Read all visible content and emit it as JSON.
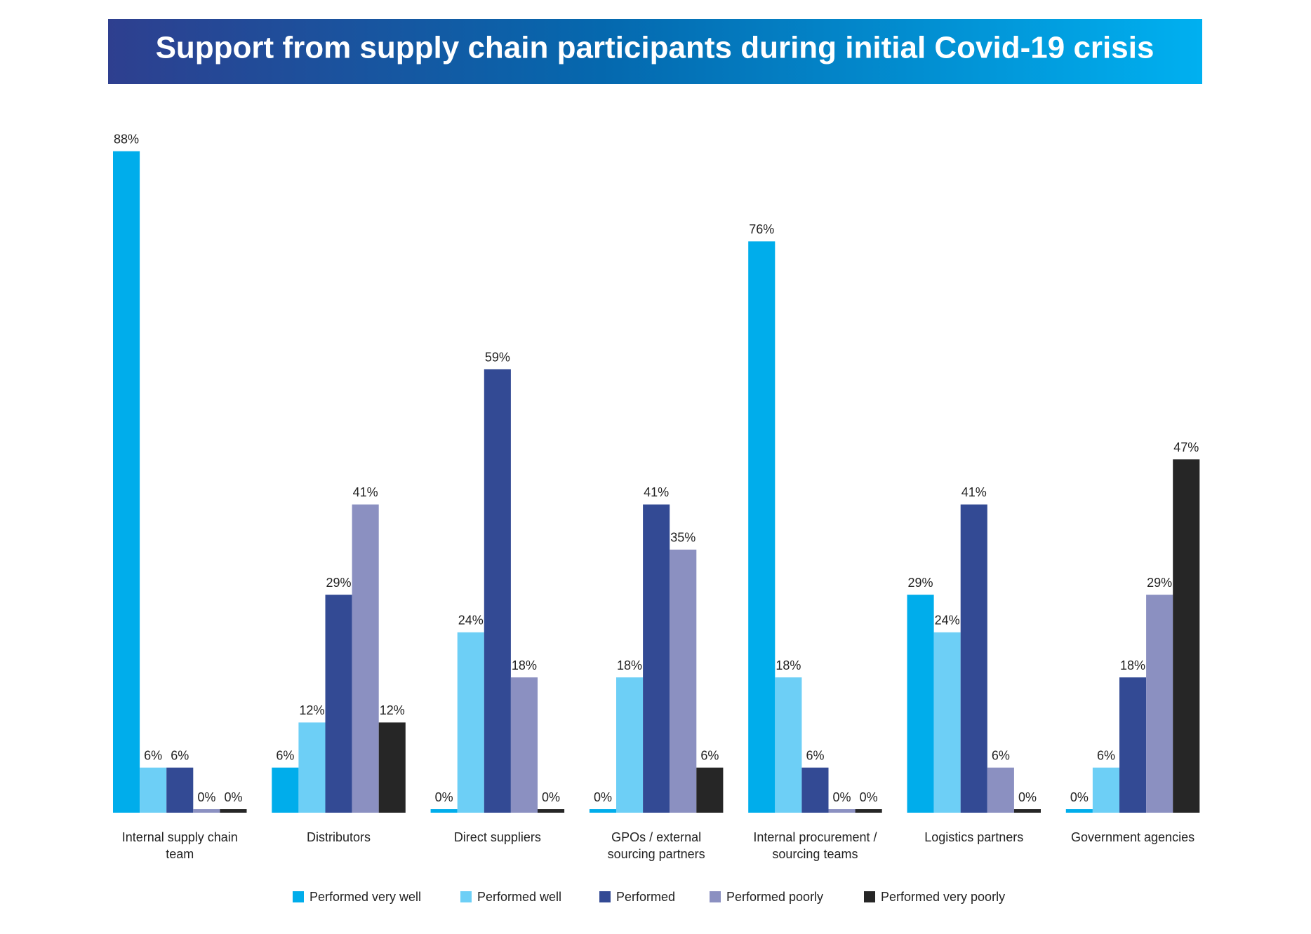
{
  "chart_data": {
    "type": "bar",
    "title": "Support from supply chain participants during initial Covid-19 crisis",
    "categories": [
      "Internal supply chain team",
      "Distributors",
      "Direct suppliers",
      "GPOs / external sourcing partners",
      "Internal procurement / sourcing teams",
      "Logistics partners",
      "Government agencies"
    ],
    "series": [
      {
        "name": "Performed very well",
        "color": "#00adeb",
        "values": [
          88,
          6,
          0,
          0,
          76,
          29,
          0
        ],
        "value_labels": [
          "88%",
          "6%",
          "0%",
          "0%",
          "76%",
          "29%",
          "0%"
        ]
      },
      {
        "name": "Performed well",
        "color": "#6dcff6",
        "values": [
          6,
          12,
          24,
          18,
          18,
          24,
          6
        ],
        "value_labels": [
          "6%",
          "12%",
          "24%",
          "18%",
          "18%",
          "24%",
          "6%"
        ]
      },
      {
        "name": "Performed",
        "color": "#334a94",
        "values": [
          6,
          29,
          59,
          41,
          6,
          41,
          18
        ],
        "value_labels": [
          "6%",
          "29%",
          "59%",
          "41%",
          "6%",
          "41%",
          "18%"
        ]
      },
      {
        "name": "Performed poorly",
        "color": "#8b90c1",
        "values": [
          0,
          41,
          18,
          35,
          0,
          6,
          29
        ],
        "value_labels": [
          "0%",
          "41%",
          "18%",
          "35%",
          "0%",
          "6%",
          "29%"
        ]
      },
      {
        "name": "Performed very poorly",
        "color": "#262626",
        "values": [
          0,
          12,
          0,
          6,
          0,
          0,
          47
        ],
        "value_labels": [
          "0%",
          "12%",
          "0%",
          "6%",
          "0%",
          "0%",
          "47%"
        ]
      }
    ],
    "legend": "bottom"
  }
}
